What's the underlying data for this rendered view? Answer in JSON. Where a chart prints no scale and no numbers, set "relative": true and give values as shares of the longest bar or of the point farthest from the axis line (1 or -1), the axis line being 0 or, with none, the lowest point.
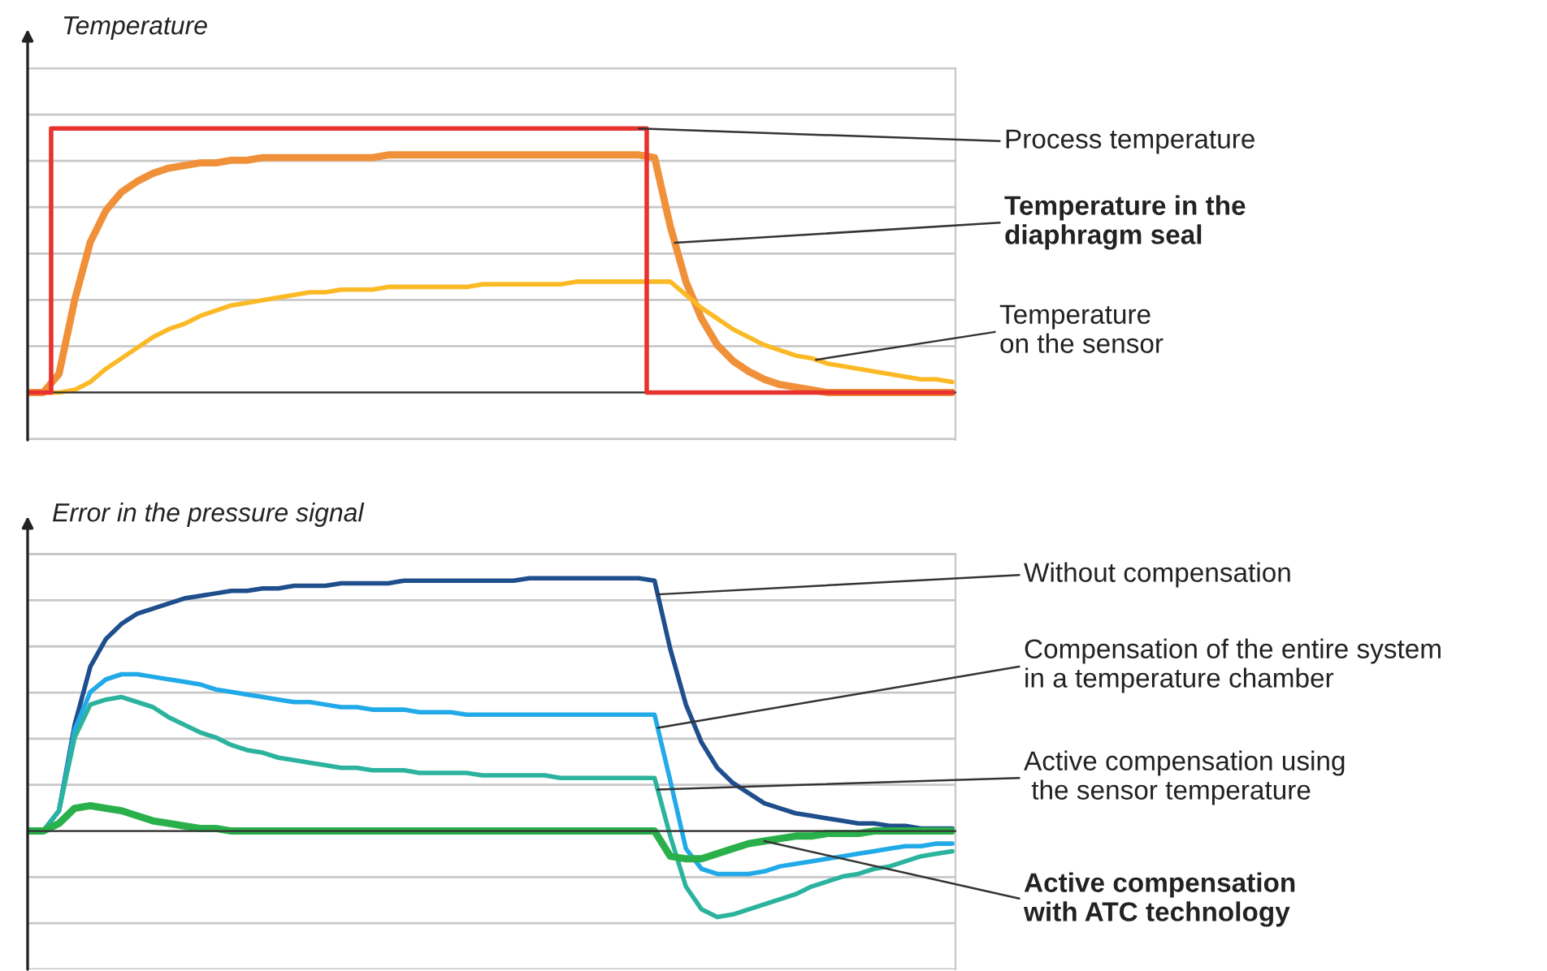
{
  "chart_data": [
    {
      "type": "line",
      "relative": true,
      "ylabel": "Temperature",
      "grid": "y",
      "categories": [
        null,
        null,
        null,
        null,
        null,
        null,
        null,
        null,
        null,
        null,
        null,
        null,
        null,
        null,
        null,
        null,
        null,
        null,
        null,
        null,
        null,
        null,
        null,
        null,
        null,
        null,
        null,
        null,
        null,
        null,
        null,
        null,
        null,
        null,
        null,
        null,
        null,
        null,
        null,
        null,
        null,
        null,
        null,
        null,
        null,
        null,
        null,
        null,
        null,
        null,
        null,
        null,
        null,
        null,
        null,
        null,
        null,
        null,
        null,
        null
      ],
      "series": [
        {
          "name": "Process temperature",
          "type": "step",
          "color": "#e8322d",
          "values": [
            0,
            0,
            1,
            1,
            1,
            1,
            1,
            1,
            1,
            1,
            1,
            1,
            1,
            1,
            1,
            1,
            1,
            1,
            1,
            1,
            1,
            1,
            1,
            1,
            1,
            1,
            1,
            1,
            1,
            1,
            1,
            1,
            1,
            1,
            1,
            1,
            1,
            1,
            1,
            1,
            0,
            0,
            0,
            0,
            0,
            0,
            0,
            0,
            0,
            0,
            0,
            0,
            0,
            0,
            0,
            0,
            0,
            0,
            0,
            0
          ]
        },
        {
          "name": "Temperature in the\ndiaphragm seal",
          "type": "line",
          "color": "#f0913a",
          "values": [
            0,
            0,
            0.07,
            0.35,
            0.57,
            0.69,
            0.76,
            0.8,
            0.83,
            0.85,
            0.86,
            0.87,
            0.87,
            0.88,
            0.88,
            0.89,
            0.89,
            0.89,
            0.89,
            0.89,
            0.89,
            0.89,
            0.89,
            0.9,
            0.9,
            0.9,
            0.9,
            0.9,
            0.9,
            0.9,
            0.9,
            0.9,
            0.9,
            0.9,
            0.9,
            0.9,
            0.9,
            0.9,
            0.9,
            0.9,
            0.89,
            0.63,
            0.42,
            0.28,
            0.18,
            0.12,
            0.08,
            0.05,
            0.03,
            0.02,
            0.01,
            0,
            0,
            0,
            0,
            0,
            0,
            0,
            0,
            0
          ]
        },
        {
          "name": "Temperature\non the sensor",
          "type": "line",
          "color": "#fbb926",
          "values": [
            0,
            0,
            0,
            0.01,
            0.04,
            0.09,
            0.13,
            0.17,
            0.21,
            0.24,
            0.26,
            0.29,
            0.31,
            0.33,
            0.34,
            0.35,
            0.36,
            0.37,
            0.38,
            0.38,
            0.39,
            0.39,
            0.39,
            0.4,
            0.4,
            0.4,
            0.4,
            0.4,
            0.4,
            0.41,
            0.41,
            0.41,
            0.41,
            0.41,
            0.41,
            0.42,
            0.42,
            0.42,
            0.42,
            0.42,
            0.42,
            0.42,
            0.37,
            0.32,
            0.28,
            0.24,
            0.21,
            0.18,
            0.16,
            0.14,
            0.13,
            0.11,
            0.1,
            0.09,
            0.08,
            0.07,
            0.06,
            0.05,
            0.05,
            0.04
          ]
        }
      ]
    },
    {
      "type": "line",
      "relative": true,
      "ylabel": "Error in the pressure signal",
      "grid": "y",
      "categories": [
        null,
        null,
        null,
        null,
        null,
        null,
        null,
        null,
        null,
        null,
        null,
        null,
        null,
        null,
        null,
        null,
        null,
        null,
        null,
        null,
        null,
        null,
        null,
        null,
        null,
        null,
        null,
        null,
        null,
        null,
        null,
        null,
        null,
        null,
        null,
        null,
        null,
        null,
        null,
        null,
        null,
        null,
        null,
        null,
        null,
        null,
        null,
        null,
        null,
        null,
        null,
        null,
        null,
        null,
        null,
        null,
        null,
        null,
        null,
        null
      ],
      "series": [
        {
          "name": "Without compensation",
          "type": "line",
          "color": "#1f4e8c",
          "values": [
            0,
            0,
            0.08,
            0.42,
            0.65,
            0.76,
            0.82,
            0.86,
            0.88,
            0.9,
            0.92,
            0.93,
            0.94,
            0.95,
            0.95,
            0.96,
            0.96,
            0.97,
            0.97,
            0.97,
            0.98,
            0.98,
            0.98,
            0.98,
            0.99,
            0.99,
            0.99,
            0.99,
            0.99,
            0.99,
            0.99,
            0.99,
            1,
            1,
            1,
            1,
            1,
            1,
            1,
            1,
            0.99,
            0.72,
            0.5,
            0.35,
            0.25,
            0.19,
            0.15,
            0.11,
            0.09,
            0.07,
            0.06,
            0.05,
            0.04,
            0.03,
            0.03,
            0.02,
            0.02,
            0.01,
            0.01,
            0.01
          ]
        },
        {
          "name": "Compensation of the entire system\nin a temperature chamber",
          "type": "line",
          "color": "#22aae8",
          "values": [
            0,
            0,
            0.08,
            0.4,
            0.55,
            0.6,
            0.62,
            0.62,
            0.61,
            0.6,
            0.59,
            0.58,
            0.56,
            0.55,
            0.54,
            0.53,
            0.52,
            0.51,
            0.51,
            0.5,
            0.49,
            0.49,
            0.48,
            0.48,
            0.48,
            0.47,
            0.47,
            0.47,
            0.46,
            0.46,
            0.46,
            0.46,
            0.46,
            0.46,
            0.46,
            0.46,
            0.46,
            0.46,
            0.46,
            0.46,
            0.46,
            0.2,
            -0.07,
            -0.15,
            -0.17,
            -0.17,
            -0.17,
            -0.16,
            -0.14,
            -0.13,
            -0.12,
            -0.11,
            -0.1,
            -0.09,
            -0.08,
            -0.07,
            -0.06,
            -0.06,
            -0.05,
            -0.05
          ]
        },
        {
          "name": "Active compensation using\n the sensor temperature",
          "type": "line",
          "color": "#2bb39e",
          "values": [
            0,
            0,
            0.08,
            0.37,
            0.5,
            0.52,
            0.53,
            0.51,
            0.49,
            0.45,
            0.42,
            0.39,
            0.37,
            0.34,
            0.32,
            0.31,
            0.29,
            0.28,
            0.27,
            0.26,
            0.25,
            0.25,
            0.24,
            0.24,
            0.24,
            0.23,
            0.23,
            0.23,
            0.23,
            0.22,
            0.22,
            0.22,
            0.22,
            0.22,
            0.21,
            0.21,
            0.21,
            0.21,
            0.21,
            0.21,
            0.21,
            -0.02,
            -0.22,
            -0.31,
            -0.34,
            -0.33,
            -0.31,
            -0.29,
            -0.27,
            -0.25,
            -0.22,
            -0.2,
            -0.18,
            -0.17,
            -0.15,
            -0.14,
            -0.12,
            -0.1,
            -0.09,
            -0.08
          ]
        },
        {
          "name": "Active compensation\nwith ATC technology",
          "type": "line",
          "color": "#2ab04a",
          "values": [
            0,
            0,
            0.03,
            0.09,
            0.1,
            0.09,
            0.08,
            0.06,
            0.04,
            0.03,
            0.02,
            0.01,
            0.01,
            0,
            0,
            0,
            0,
            0,
            0,
            0,
            0,
            0,
            0,
            0,
            0,
            0,
            0,
            0,
            0,
            0,
            0,
            0,
            0,
            0,
            0,
            0,
            0,
            0,
            0,
            0,
            0,
            -0.1,
            -0.11,
            -0.11,
            -0.09,
            -0.07,
            -0.05,
            -0.04,
            -0.03,
            -0.02,
            -0.02,
            -0.01,
            -0.01,
            -0.01,
            0,
            0,
            0,
            0,
            0,
            0
          ]
        }
      ]
    }
  ]
}
